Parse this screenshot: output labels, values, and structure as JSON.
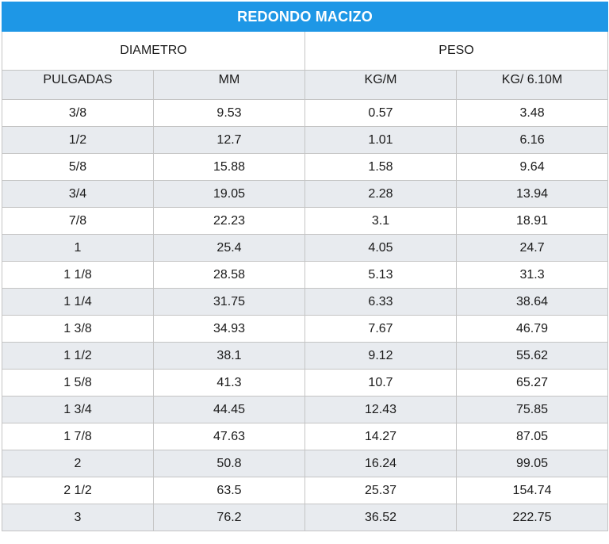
{
  "table": {
    "title": "REDONDO MACIZO",
    "groups": {
      "diametro": "DIAMETRO",
      "peso": "PESO"
    },
    "columns": [
      "PULGADAS",
      "MM",
      "KG/M",
      "KG/ 6.10M"
    ],
    "rows": [
      [
        "3/8",
        "9.53",
        "0.57",
        "3.48"
      ],
      [
        "1/2",
        "12.7",
        "1.01",
        "6.16"
      ],
      [
        "5/8",
        "15.88",
        "1.58",
        "9.64"
      ],
      [
        "3/4",
        "19.05",
        "2.28",
        "13.94"
      ],
      [
        "7/8",
        "22.23",
        "3.1",
        "18.91"
      ],
      [
        "1",
        "25.4",
        "4.05",
        "24.7"
      ],
      [
        "1 1/8",
        "28.58",
        "5.13",
        "31.3"
      ],
      [
        "1 1/4",
        "31.75",
        "6.33",
        "38.64"
      ],
      [
        "1 3/8",
        "34.93",
        "7.67",
        "46.79"
      ],
      [
        "1 1/2",
        "38.1",
        "9.12",
        "55.62"
      ],
      [
        "1 5/8",
        "41.3",
        "10.7",
        "65.27"
      ],
      [
        "1 3/4",
        "44.45",
        "12.43",
        "75.85"
      ],
      [
        "1 7/8",
        "47.63",
        "14.27",
        "87.05"
      ],
      [
        "2",
        "50.8",
        "16.24",
        "99.05"
      ],
      [
        "2 1/2",
        "63.5",
        "25.37",
        "154.74"
      ],
      [
        "3",
        "76.2",
        "36.52",
        "222.75"
      ]
    ]
  },
  "colors": {
    "title_background": "#1e97e6",
    "title_text": "#ffffff",
    "stripe_background": "#e8ebef",
    "border": "#c4c4c4"
  }
}
